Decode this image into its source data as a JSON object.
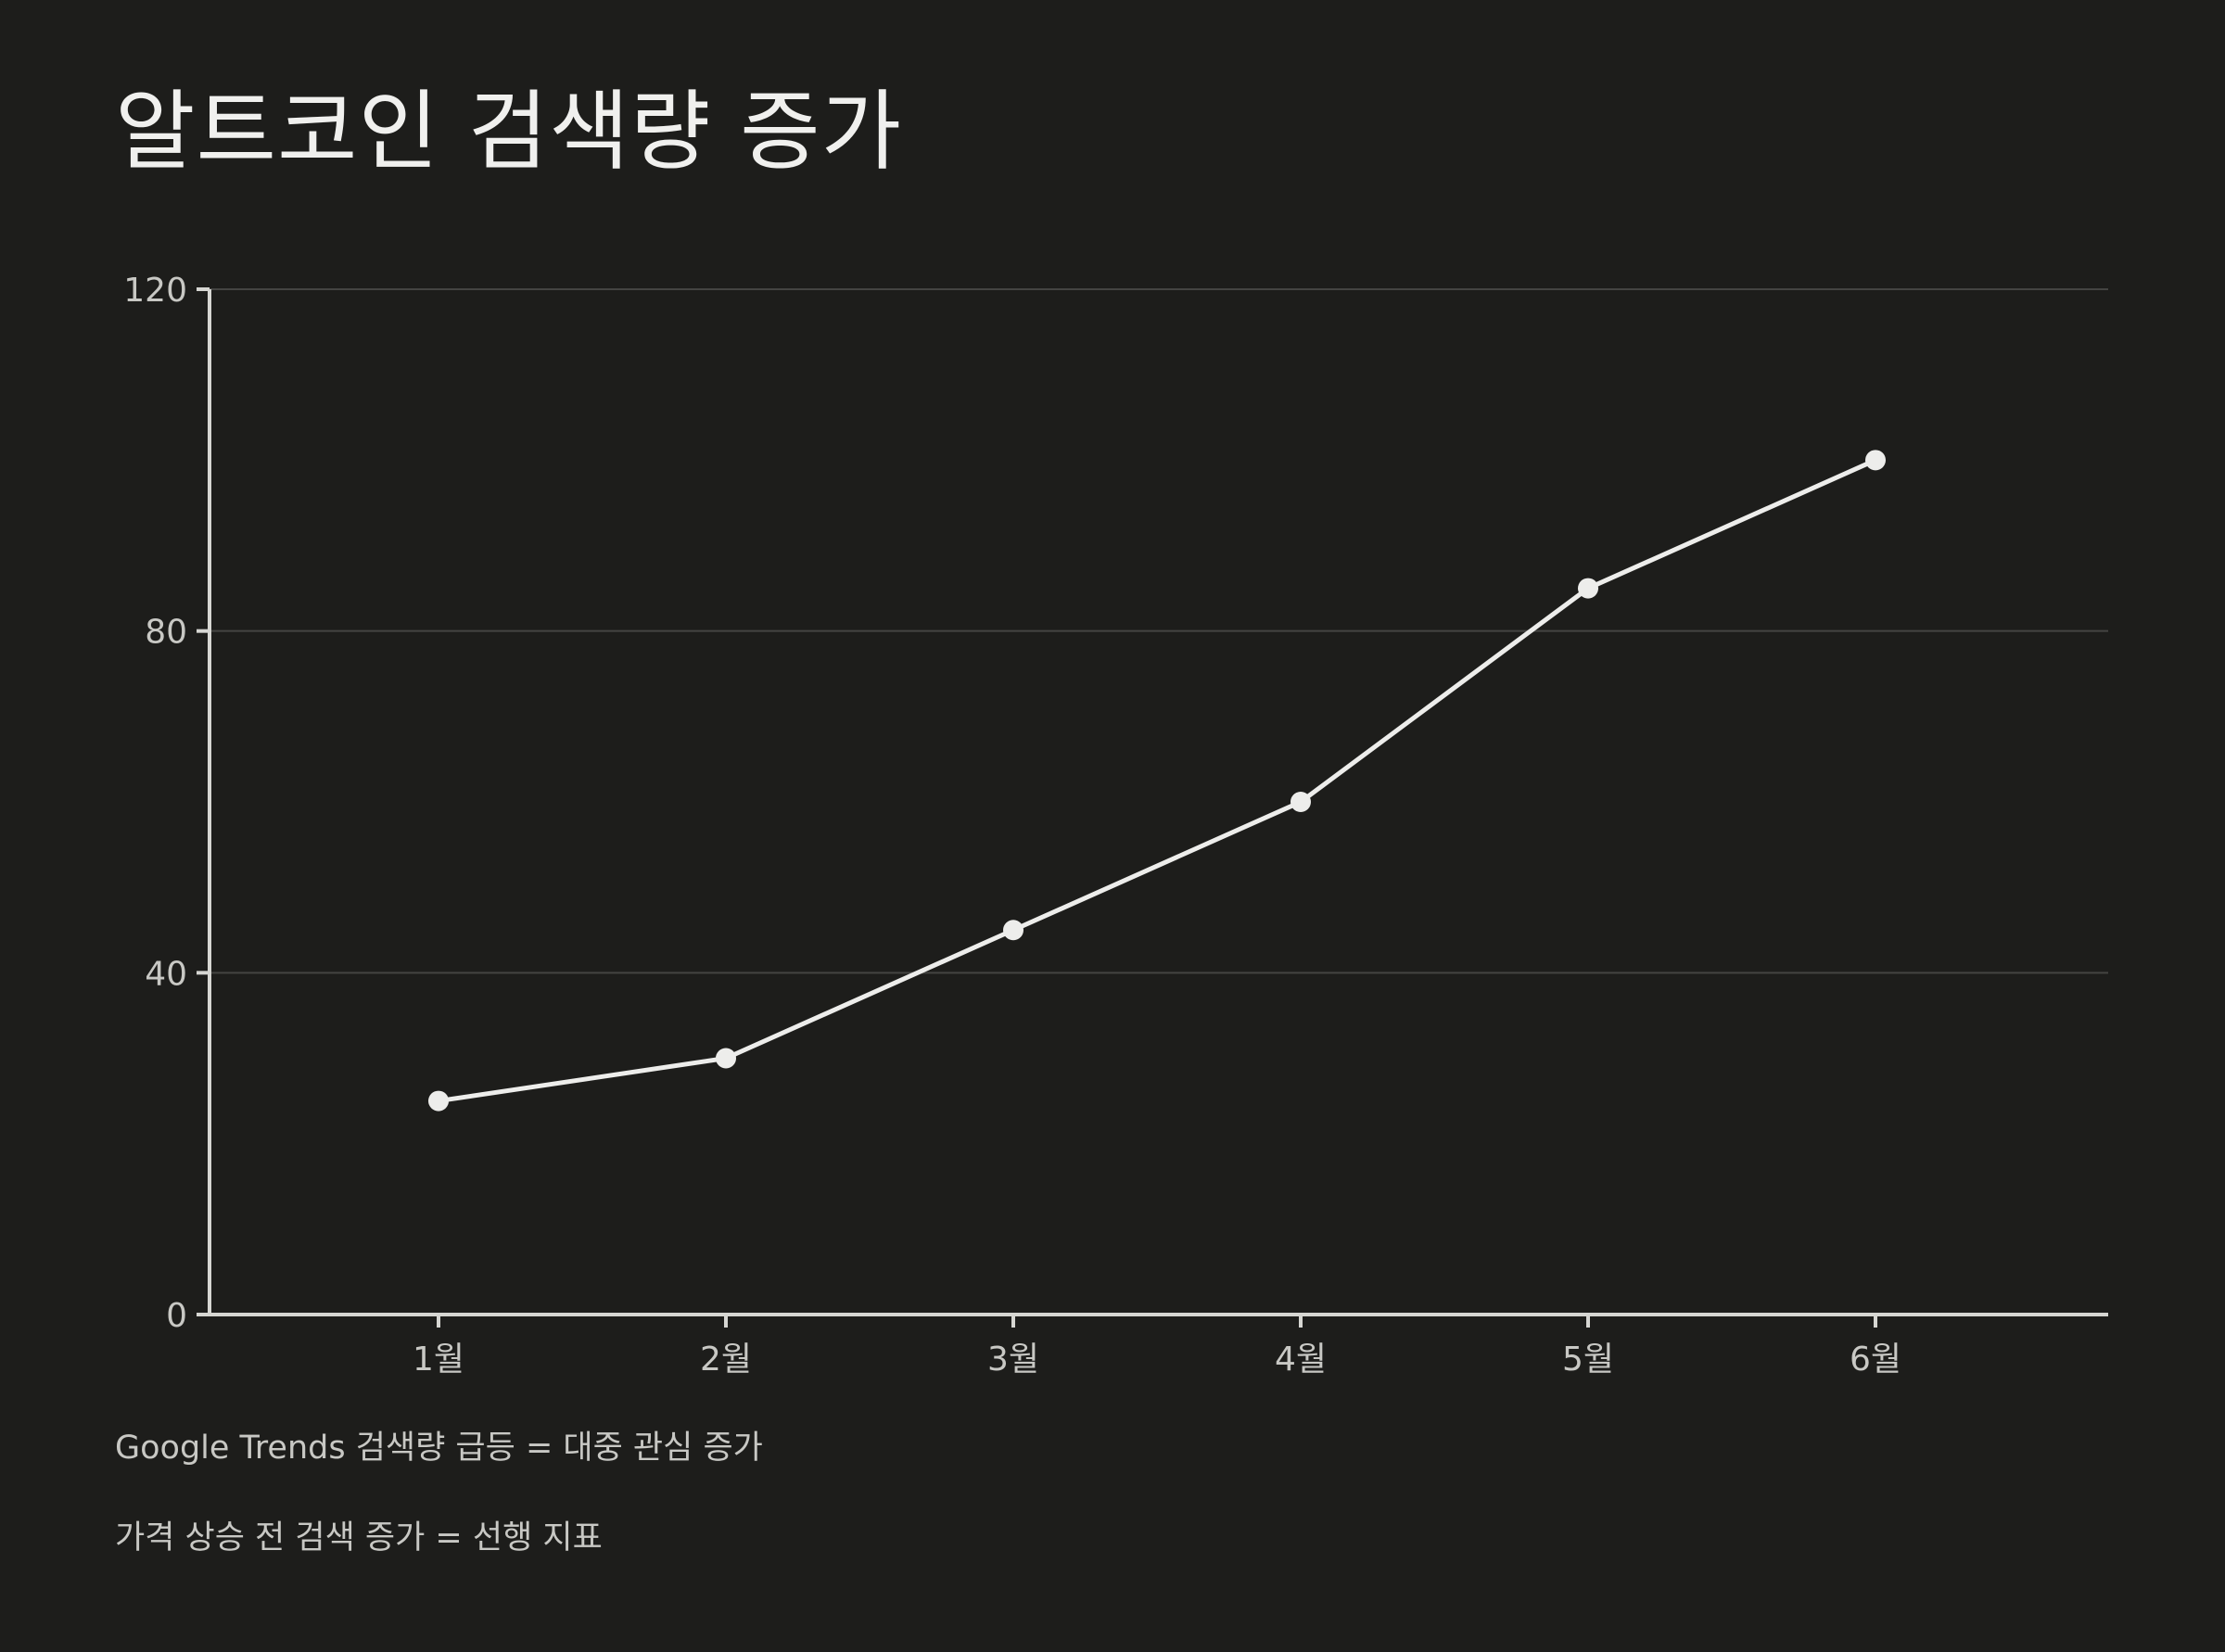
{
  "title": "알트코인 검색량 증가",
  "notes": [
    "Google Trends 검색량 급등 = 대중 관심 증가",
    "가격 상승 전 검색 증가 = 선행 지표"
  ],
  "colors": {
    "background": "#1d1d1b",
    "line": "#ededeb",
    "axis": "#d6d6d2",
    "grid": "#444442",
    "text": "#c8c8c4"
  },
  "chart_data": {
    "type": "line",
    "title": "알트코인 검색량 증가",
    "xlabel": "",
    "ylabel": "",
    "categories": [
      "1월",
      "2월",
      "3월",
      "4월",
      "5월",
      "6월"
    ],
    "series": [
      {
        "values": [
          25,
          30,
          45,
          60,
          85,
          100
        ]
      }
    ],
    "ylim": [
      0,
      120
    ],
    "yticks": [
      "0",
      "40",
      "80",
      "120"
    ],
    "grid": true,
    "markers": true
  }
}
